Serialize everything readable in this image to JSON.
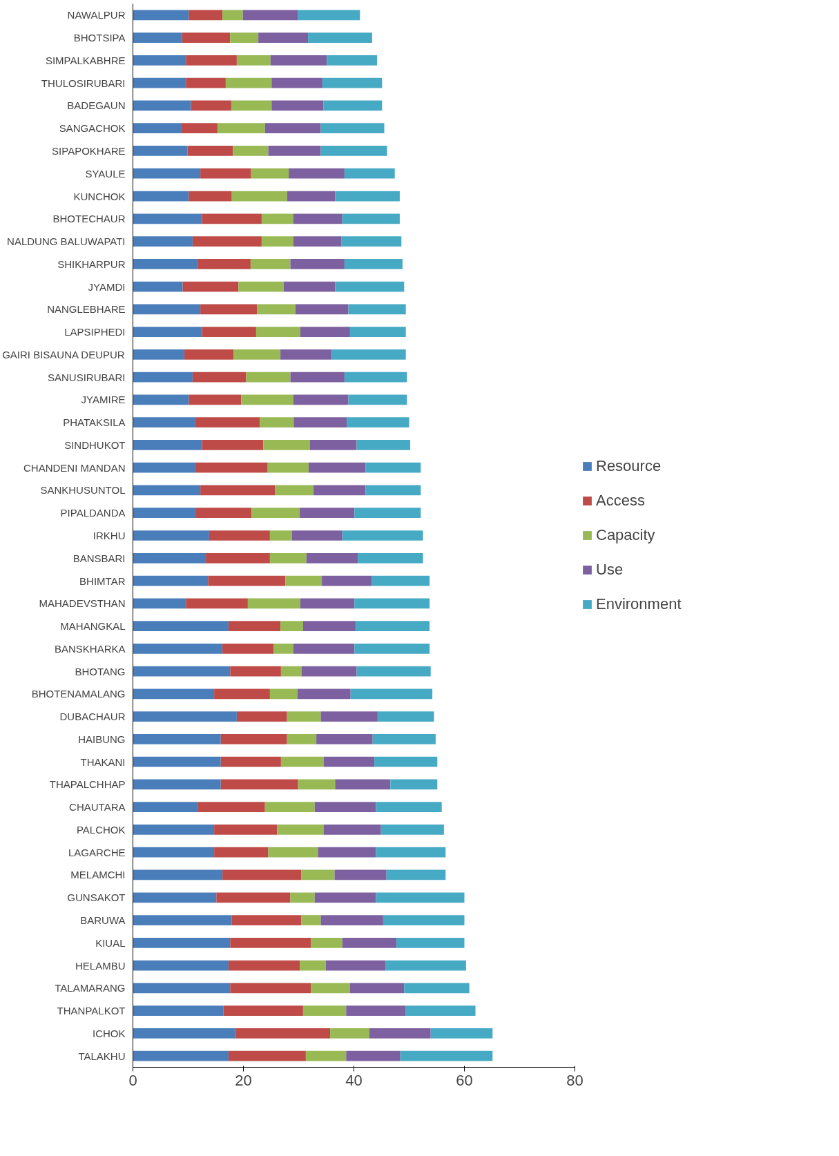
{
  "chart_data": {
    "type": "bar",
    "orientation": "horizontal",
    "stacked": true,
    "categories": [
      "NAWALPUR",
      "BHOTSIPA",
      "SIMPALKABHRE",
      "THULOSIRUBARI",
      "BADEGAUN",
      "SANGACHOK",
      "SIPAPOKHARE",
      "SYAULE",
      "KUNCHOK",
      "BHOTECHAUR",
      "NALDUNG BALUWAPATI",
      "SHIKHARPUR",
      "JYAMDI",
      "NANGLEBHARE",
      "LAPSIPHEDI",
      "GAIRI BISAUNA DEUPUR",
      "SANUSIRUBARI",
      "JYAMIRE",
      "PHATAKSILA",
      "SINDHUKOT",
      "CHANDENI MANDAN",
      "SANKHUSUNTOL",
      "PIPALDANDA",
      "IRKHU",
      "BANSBARI",
      "BHIMTAR",
      "MAHADEVSTHAN",
      "MAHANGKAL",
      "BANSKHARKA",
      "BHOTANG",
      "BHOTENAMALANG",
      "DUBACHAUR",
      "HAIBUNG",
      "THAKANI",
      "THAPALCHHAP",
      "CHAUTARA",
      "PALCHOK",
      "LAGARCHE",
      "MELAMCHI",
      "GUNSAKOT",
      "BARUWA",
      "KIUAL",
      "HELAMBU",
      "TALAMARANG",
      "THANPALKOT",
      "ICHOK",
      "TALAKHU"
    ],
    "series": [
      {
        "name": "Resource",
        "color": "#4a7ebb",
        "values": [
          10.1,
          8.9,
          9.6,
          9.6,
          10.5,
          8.7,
          9.9,
          12.2,
          10.1,
          12.5,
          10.8,
          11.6,
          9.0,
          12.2,
          12.5,
          9.3,
          10.8,
          10.1,
          11.3,
          12.5,
          11.3,
          12.2,
          11.3,
          13.8,
          13.2,
          13.6,
          9.6,
          17.3,
          16.2,
          17.6,
          14.7,
          18.8,
          15.9,
          15.9,
          15.9,
          11.8,
          14.7,
          14.7,
          16.2,
          15.1,
          17.9,
          17.6,
          17.3,
          17.6,
          16.4,
          18.5,
          17.3
        ]
      },
      {
        "name": "Access",
        "color": "#be4b48",
        "values": [
          6.1,
          8.7,
          9.2,
          7.2,
          7.3,
          6.6,
          8.2,
          9.2,
          7.8,
          10.8,
          12.5,
          9.7,
          10.1,
          10.3,
          9.8,
          8.9,
          9.7,
          9.5,
          11.7,
          11.1,
          13.1,
          13.5,
          10.2,
          11.0,
          11.6,
          14.0,
          11.2,
          9.4,
          9.3,
          9.2,
          10.1,
          9.1,
          12.0,
          10.9,
          14.0,
          12.1,
          11.4,
          9.8,
          14.3,
          13.4,
          12.6,
          14.6,
          12.9,
          14.6,
          14.4,
          17.2,
          14.0
        ]
      },
      {
        "name": "Capacity",
        "color": "#98b954",
        "values": [
          3.7,
          5.1,
          6.1,
          8.3,
          7.3,
          8.6,
          6.4,
          6.8,
          10.0,
          5.7,
          5.7,
          7.2,
          8.2,
          6.9,
          8.0,
          8.5,
          8.0,
          9.4,
          6.1,
          8.4,
          7.4,
          7.0,
          8.7,
          4.0,
          6.6,
          6.6,
          9.5,
          4.1,
          3.5,
          3.7,
          5.0,
          6.1,
          5.3,
          7.7,
          6.7,
          9.0,
          8.4,
          9.0,
          6.0,
          4.4,
          3.5,
          5.7,
          4.7,
          7.1,
          7.8,
          7.1,
          7.3
        ]
      },
      {
        "name": "Use",
        "color": "#7d60a0",
        "values": [
          10.0,
          9.0,
          10.2,
          9.2,
          9.4,
          10.1,
          9.5,
          10.1,
          8.7,
          8.9,
          8.7,
          9.8,
          9.3,
          9.6,
          9.0,
          9.3,
          9.8,
          10.0,
          9.6,
          8.5,
          10.3,
          9.4,
          9.9,
          9.1,
          9.3,
          9.0,
          9.8,
          9.5,
          11.1,
          10.0,
          9.6,
          10.3,
          10.2,
          9.2,
          10.0,
          11.1,
          10.4,
          10.5,
          9.4,
          11.1,
          11.3,
          9.8,
          10.8,
          9.8,
          10.8,
          11.1,
          9.8
        ]
      },
      {
        "name": "Environment",
        "color": "#46aac5",
        "values": [
          11.2,
          11.6,
          9.1,
          10.8,
          10.6,
          11.5,
          12.0,
          9.1,
          11.7,
          10.4,
          10.9,
          10.5,
          12.5,
          10.4,
          10.1,
          13.4,
          11.3,
          10.6,
          11.3,
          9.7,
          10.0,
          10.0,
          12.0,
          14.6,
          11.8,
          10.5,
          13.6,
          13.4,
          13.6,
          13.4,
          14.8,
          10.2,
          11.4,
          11.4,
          8.5,
          11.9,
          11.4,
          12.6,
          10.7,
          16.0,
          14.7,
          12.3,
          14.6,
          11.8,
          12.6,
          11.2,
          16.7
        ]
      }
    ],
    "xlim": [
      0,
      80
    ],
    "xticks": [
      0,
      20,
      40,
      60,
      80
    ],
    "grid": false,
    "legend": "right"
  }
}
